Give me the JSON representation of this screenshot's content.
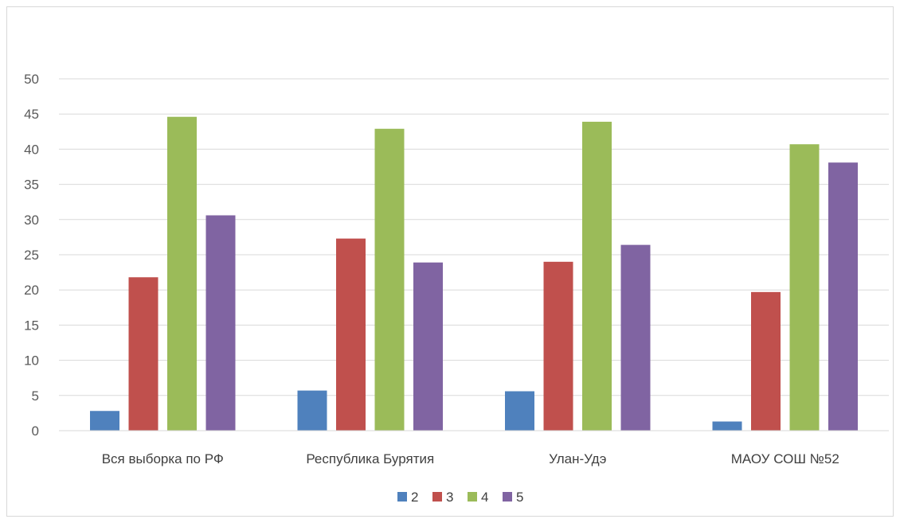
{
  "chart_data": {
    "type": "bar",
    "title": "",
    "xlabel": "",
    "ylabel": "",
    "ylim": [
      0,
      50
    ],
    "yticks": [
      0,
      5,
      10,
      15,
      20,
      25,
      30,
      35,
      40,
      45,
      50
    ],
    "grid": true,
    "legend_position": "bottom",
    "categories": [
      "Вся выборка по РФ",
      "Республика Бурятия",
      "Улан-Удэ",
      "МАОУ СОШ №52"
    ],
    "series": [
      {
        "name": "2",
        "color": "#4f81bd",
        "values": [
          2.8,
          5.7,
          5.6,
          1.3
        ]
      },
      {
        "name": "3",
        "color": "#c0504d",
        "values": [
          21.8,
          27.3,
          24.0,
          19.7
        ]
      },
      {
        "name": "4",
        "color": "#9bbb59",
        "values": [
          44.6,
          42.9,
          43.9,
          40.7
        ]
      },
      {
        "name": "5",
        "color": "#8064a2",
        "values": [
          30.6,
          23.9,
          26.4,
          38.1
        ]
      }
    ]
  }
}
